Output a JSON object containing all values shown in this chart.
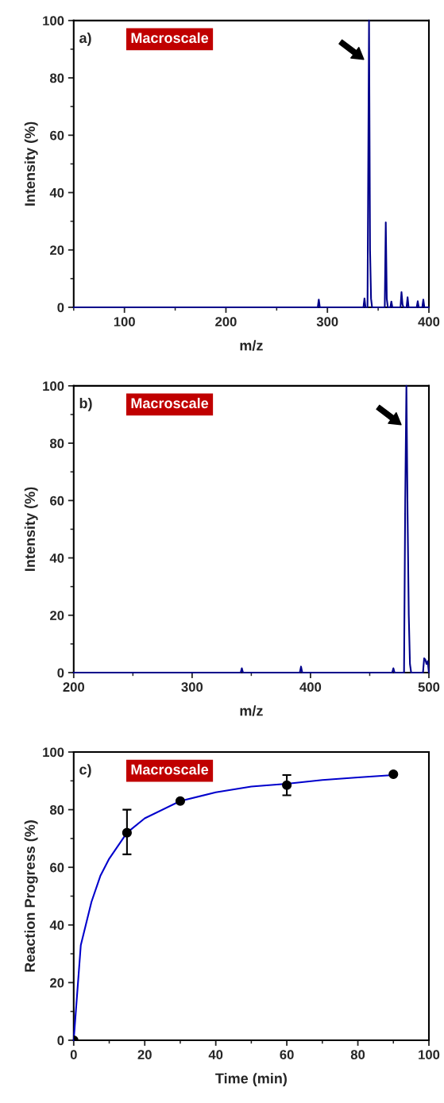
{
  "chart_data": [
    {
      "type": "line",
      "xlabel": "m/z",
      "ylabel": "Intensity (%)",
      "annotations": [
        "a)",
        "Macroscale"
      ],
      "xlim": [
        50,
        400
      ],
      "xticks": [
        100,
        200,
        300,
        400
      ],
      "ylim": [
        0,
        100
      ],
      "yticks": [
        0,
        20,
        40,
        60,
        80,
        100
      ],
      "grid": false,
      "legend": false,
      "series": [
        {
          "color": "#00008b",
          "x": [
            50,
            290.5,
            291.5,
            292.5,
            335.5,
            336.5,
            337.5,
            339.5,
            341,
            342,
            343,
            344,
            356.5,
            357.5,
            358.5,
            359.5,
            362,
            363,
            364,
            372,
            373,
            374,
            375,
            378,
            379,
            380,
            388,
            389,
            390,
            393.5,
            394.5,
            395.5,
            400
          ],
          "values": [
            0,
            0,
            2.7,
            0,
            0,
            3.1,
            0,
            0,
            100,
            20,
            3,
            0,
            0,
            29.6,
            3,
            0,
            0,
            2,
            0,
            0,
            5.3,
            1,
            0,
            0,
            3.5,
            0,
            0,
            2.1,
            0,
            0,
            2.7,
            0,
            0
          ]
        }
      ]
    },
    {
      "type": "line",
      "xlabel": "m/z",
      "ylabel": "Intensity (%)",
      "annotations": [
        "b)",
        "Macroscale"
      ],
      "xlim": [
        200,
        500
      ],
      "xticks": [
        200,
        300,
        400,
        500
      ],
      "ylim": [
        0,
        100
      ],
      "yticks": [
        0,
        20,
        40,
        60,
        80,
        100
      ],
      "grid": false,
      "legend": false,
      "series": [
        {
          "color": "#00008b",
          "x": [
            200,
            341,
            342,
            343,
            391,
            392,
            393,
            469,
            470,
            471,
            479,
            480,
            481,
            482,
            483,
            484,
            485,
            495,
            496,
            497,
            498,
            499,
            500
          ],
          "values": [
            0,
            0,
            1.5,
            0,
            0,
            2.1,
            0,
            0,
            1.5,
            0,
            0,
            60,
            100,
            55,
            20,
            3,
            0,
            0,
            5,
            4.5,
            3,
            4,
            0
          ]
        }
      ]
    },
    {
      "type": "scatter",
      "xlabel": "Time (min)",
      "ylabel": "Reaction Progress (%)",
      "annotations": [
        "c)",
        "Macroscale"
      ],
      "xlim": [
        0,
        100
      ],
      "xticks": [
        0,
        20,
        40,
        60,
        80,
        100
      ],
      "ylim": [
        0,
        100
      ],
      "yticks": [
        0,
        20,
        40,
        60,
        80,
        100
      ],
      "grid": false,
      "legend": false,
      "series": [
        {
          "type": "line",
          "color": "#0000cc",
          "marker": "none",
          "x": [
            0,
            2,
            5,
            7.5,
            10,
            15,
            20,
            30,
            40,
            50,
            60,
            70,
            80,
            90
          ],
          "values": [
            0,
            33,
            48,
            57,
            63,
            72,
            77,
            83,
            86,
            88,
            89,
            90.3,
            91.2,
            92
          ]
        },
        {
          "type": "scatter",
          "color": "#000000",
          "marker": "circle",
          "x": [
            0,
            15,
            30,
            60,
            90
          ],
          "values": [
            0,
            72,
            83,
            88.5,
            92.3
          ],
          "errors": [
            null,
            [
              64.5,
              80
            ],
            null,
            [
              85,
              92
            ],
            null
          ]
        }
      ]
    }
  ]
}
